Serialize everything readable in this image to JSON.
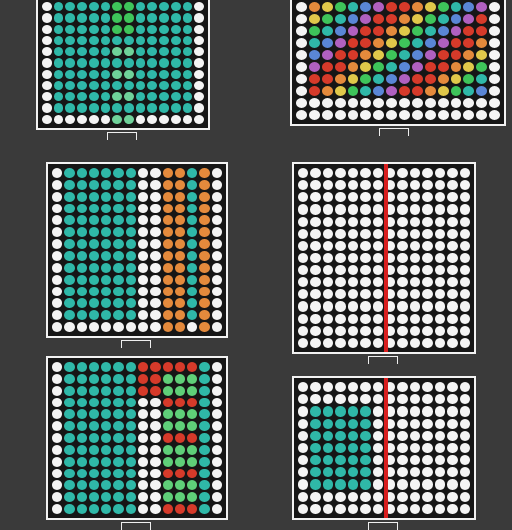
{
  "panels": [
    {
      "key": "A",
      "scheme": "cyan-green",
      "header": "",
      "footer": "",
      "vlabel": "",
      "ticks": []
    },
    {
      "key": "B",
      "scheme": "rainbow",
      "header": "",
      "footer": "",
      "vlabel": "",
      "ticks": []
    },
    {
      "key": "C",
      "scheme": "cyan-orange",
      "header": "",
      "footer": "",
      "vlabel": "",
      "ticks": []
    },
    {
      "key": "D",
      "scheme": "red-line",
      "header": "",
      "footer": "",
      "vlabel": "",
      "ticks": []
    },
    {
      "key": "E",
      "scheme": "cyan-red",
      "header": "",
      "footer": "",
      "vlabel": "",
      "ticks": []
    },
    {
      "key": "F",
      "scheme": "cyan-redline",
      "header": "",
      "footer": "",
      "vlabel": "",
      "ticks": []
    }
  ],
  "colors": {
    "background": "#3a3a3a",
    "panel_fill": "#161616",
    "dot_white": "#f4f4f4",
    "dot_cyan": "#2fb8a8",
    "dot_green": "#3ec45a",
    "dot_orange": "#e48a3c",
    "dot_red": "#d63a2a",
    "line_red": "#d81e1e"
  }
}
